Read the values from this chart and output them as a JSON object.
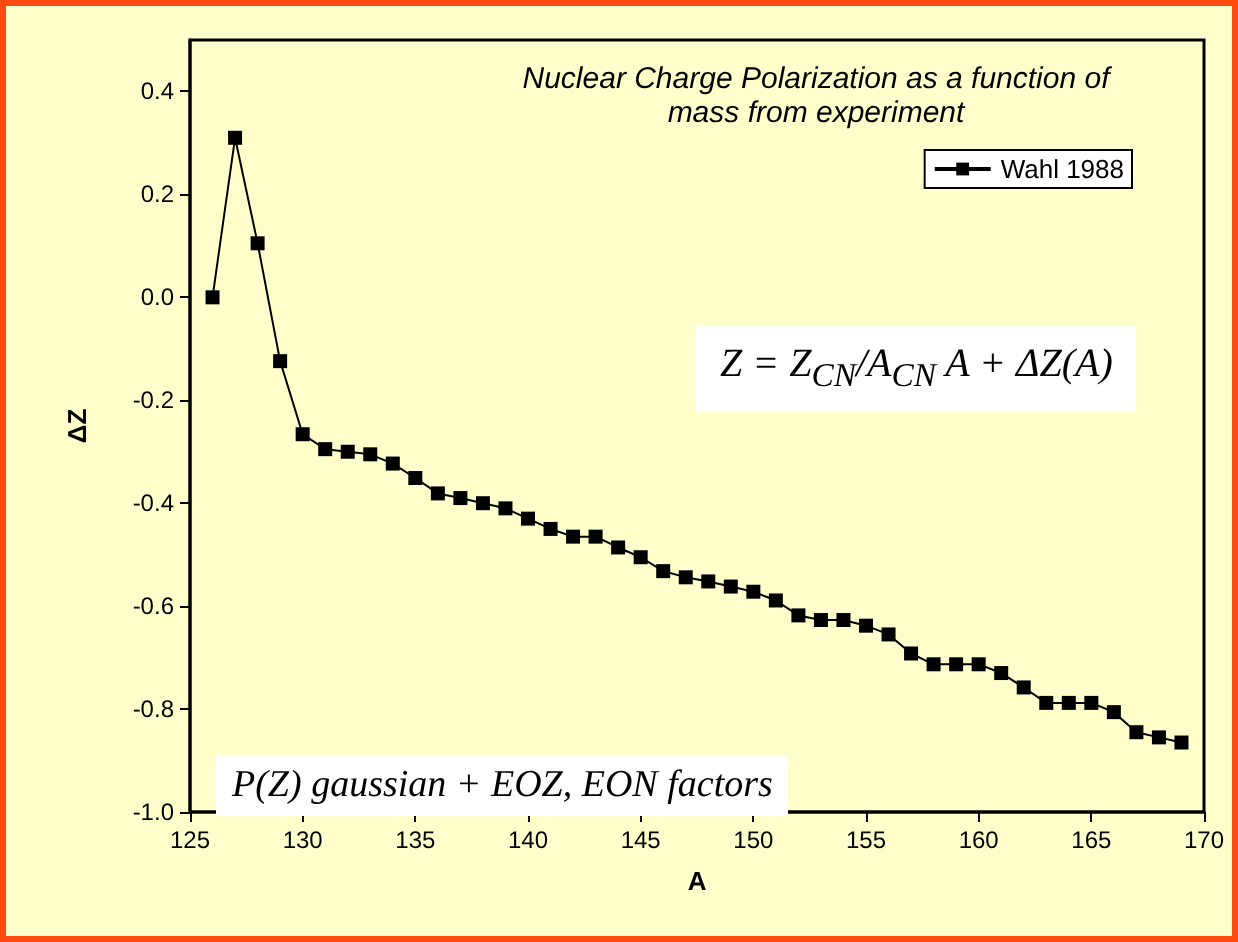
{
  "chart_data": {
    "type": "line",
    "title": "Nuclear Charge Polarization as a function of mass from experiment",
    "xlabel": "A",
    "ylabel": "ΔZ",
    "x": [
      126,
      127,
      128,
      129,
      130,
      131,
      132,
      133,
      134,
      135,
      136,
      137,
      138,
      139,
      140,
      141,
      142,
      143,
      144,
      145,
      146,
      147,
      148,
      149,
      150,
      151,
      152,
      153,
      154,
      155,
      156,
      157,
      158,
      159,
      160,
      161,
      162,
      163,
      164,
      165,
      166,
      167,
      168,
      169
    ],
    "series": [
      {
        "name": "Wahl 1988",
        "color": "#000000",
        "values": [
          0,
          0.31,
          0.105,
          -0.124,
          -0.266,
          -0.295,
          -0.3,
          -0.305,
          -0.323,
          -0.351,
          -0.381,
          -0.39,
          -0.4,
          -0.41,
          -0.43,
          -0.45,
          -0.465,
          -0.465,
          -0.486,
          -0.505,
          -0.532,
          -0.544,
          -0.552,
          -0.562,
          -0.572,
          -0.589,
          -0.618,
          -0.627,
          -0.627,
          -0.638,
          -0.655,
          -0.692,
          -0.713,
          -0.713,
          -0.713,
          -0.73,
          -0.758,
          -0.788,
          -0.788,
          -0.788,
          -0.806,
          -0.845,
          -0.855,
          -0.865
        ]
      }
    ],
    "xlim": [
      125,
      170
    ],
    "xticks": [
      125,
      130,
      135,
      140,
      145,
      150,
      155,
      160,
      165,
      170
    ],
    "ylim": [
      -1.0,
      0.5
    ],
    "yticks": [
      {
        "value": -1.0,
        "label": "-1.0"
      },
      {
        "value": -0.8,
        "label": "-0.8"
      },
      {
        "value": -0.6,
        "label": "-0.6"
      },
      {
        "value": -0.4,
        "label": "-0.4"
      },
      {
        "value": -0.2,
        "label": "-0.2"
      },
      {
        "value": 0,
        "label": "0.0"
      },
      {
        "value": 0.2,
        "label": "0.2"
      },
      {
        "value": 0.4,
        "label": "0.4"
      }
    ],
    "annotations": [
      "Z = Z$_{CN}$/A$_{CN}$ A + ΔZ(A)",
      "P(Z) gaussian + EOZ, EON factors"
    ],
    "legend": "top right",
    "marker": "square",
    "line_style": "solid",
    "grid": false
  }
}
